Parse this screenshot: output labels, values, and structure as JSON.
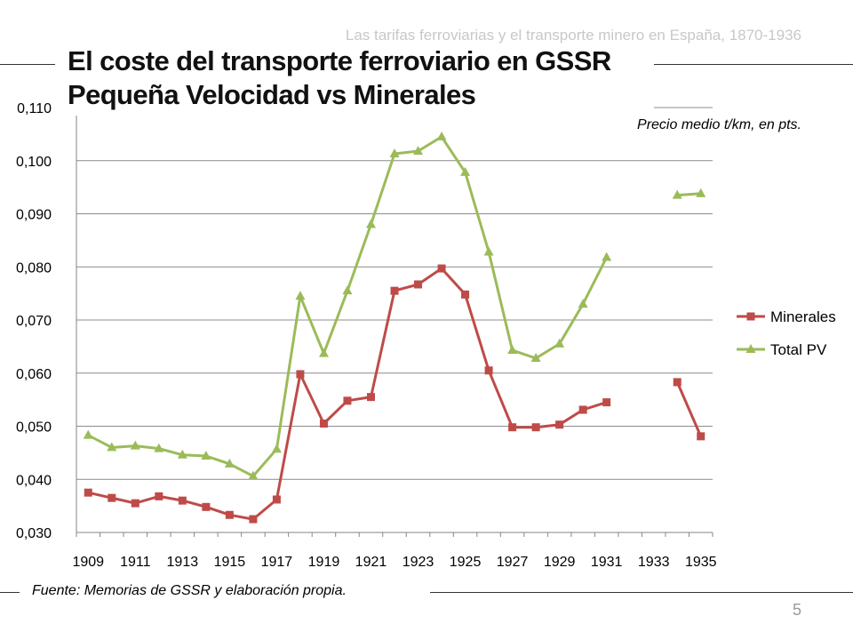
{
  "header": {
    "presentation_title": "Las tarifas ferroviarias y el transporte minero en España, 1870-1936"
  },
  "slide": {
    "title_line1": "El coste del transporte ferroviario en GSSR",
    "title_line2": "Pequeña Velocidad vs Minerales",
    "subtitle": "Precio medio t/km, en pts.",
    "footer": "Fuente: Memorias de GSSR y elaboración propia.",
    "page_number": "5"
  },
  "chart_data": {
    "type": "line",
    "title": "El coste del transporte ferroviario en GSSR Pequeña Velocidad vs Minerales",
    "ylabel": "Precio medio t/km, en pts.",
    "xlabel": "",
    "x": [
      1909,
      1910,
      1911,
      1912,
      1913,
      1914,
      1915,
      1916,
      1917,
      1918,
      1919,
      1920,
      1921,
      1922,
      1923,
      1924,
      1925,
      1926,
      1927,
      1928,
      1929,
      1930,
      1931,
      1932,
      1933,
      1934,
      1935
    ],
    "x_tick_labels": [
      "1909",
      "1911",
      "1913",
      "1915",
      "1917",
      "1919",
      "1921",
      "1923",
      "1925",
      "1927",
      "1929",
      "1931",
      "1933",
      "1935"
    ],
    "ylim": [
      0.03,
      0.11
    ],
    "y_tick_labels": [
      "0,030",
      "0,040",
      "0,050",
      "0,060",
      "0,070",
      "0,080",
      "0,090",
      "0,100",
      "0,110"
    ],
    "grid": true,
    "legend_position": "right",
    "series": [
      {
        "name": "Minerales",
        "color": "#be4b48",
        "marker": "square",
        "values": [
          0.0375,
          0.0365,
          0.0355,
          0.0368,
          0.036,
          0.0348,
          0.0333,
          0.0325,
          0.0362,
          0.0598,
          0.0505,
          0.0548,
          0.0555,
          0.0755,
          0.0767,
          0.0797,
          0.0748,
          0.0605,
          0.0498,
          0.0498,
          0.0503,
          0.0531,
          0.0545,
          null,
          null,
          0.0583,
          0.0481
        ]
      },
      {
        "name": "Total PV",
        "color": "#9bbb59",
        "marker": "triangle",
        "values": [
          0.0483,
          0.046,
          0.0463,
          0.0458,
          0.0446,
          0.0444,
          0.0429,
          0.0406,
          0.0457,
          0.0745,
          0.0637,
          0.0755,
          0.088,
          0.1013,
          0.1018,
          0.1045,
          0.0978,
          0.0828,
          0.0643,
          0.0628,
          0.0655,
          0.073,
          0.0818,
          null,
          null,
          0.0935,
          0.0938
        ]
      }
    ]
  }
}
